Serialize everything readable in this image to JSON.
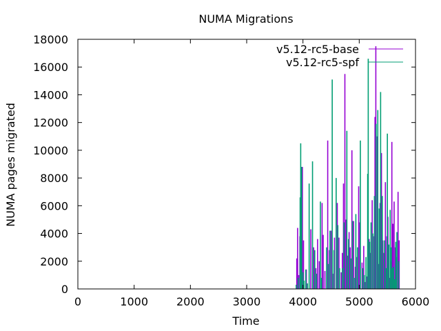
{
  "chart_data": {
    "type": "bar",
    "title": "NUMA Migrations",
    "xlabel": "Time",
    "ylabel": "NUMA pages migrated",
    "xlim": [
      0,
      6000
    ],
    "ylim": [
      0,
      18000
    ],
    "xticks": [
      0,
      1000,
      2000,
      3000,
      4000,
      5000,
      6000
    ],
    "yticks": [
      0,
      2000,
      4000,
      6000,
      8000,
      10000,
      12000,
      14000,
      16000,
      18000
    ],
    "grid": false,
    "legend_position": "top-right",
    "series": [
      {
        "name": "v5.12-rc5-base",
        "color": "#9400d3",
        "points": [
          [
            3890,
            2200
          ],
          [
            3905,
            4400
          ],
          [
            3925,
            1000
          ],
          [
            3945,
            3800
          ],
          [
            3965,
            2000
          ],
          [
            3990,
            8800
          ],
          [
            4010,
            3500
          ],
          [
            4060,
            1400
          ],
          [
            4140,
            4300
          ],
          [
            4190,
            3000
          ],
          [
            4230,
            1500
          ],
          [
            4260,
            3600
          ],
          [
            4290,
            2000
          ],
          [
            4340,
            6200
          ],
          [
            4360,
            3900
          ],
          [
            4390,
            1300
          ],
          [
            4440,
            10700
          ],
          [
            4470,
            2800
          ],
          [
            4500,
            4200
          ],
          [
            4530,
            1100
          ],
          [
            4560,
            3700
          ],
          [
            4610,
            6200
          ],
          [
            4640,
            3700
          ],
          [
            4680,
            1200
          ],
          [
            4700,
            2600
          ],
          [
            4720,
            7600
          ],
          [
            4745,
            15500
          ],
          [
            4765,
            5000
          ],
          [
            4790,
            2400
          ],
          [
            4820,
            4100
          ],
          [
            4840,
            3000
          ],
          [
            4870,
            10000
          ],
          [
            4900,
            4900
          ],
          [
            4930,
            1600
          ],
          [
            4960,
            2300
          ],
          [
            4990,
            7400
          ],
          [
            5010,
            4800
          ],
          [
            5050,
            1900
          ],
          [
            5080,
            3100
          ],
          [
            5110,
            500
          ],
          [
            5140,
            900
          ],
          [
            5175,
            3600
          ],
          [
            5200,
            2600
          ],
          [
            5230,
            6400
          ],
          [
            5260,
            3800
          ],
          [
            5280,
            12400
          ],
          [
            5295,
            17500
          ],
          [
            5320,
            11000
          ],
          [
            5340,
            1800
          ],
          [
            5370,
            6200
          ],
          [
            5395,
            9800
          ],
          [
            5420,
            3500
          ],
          [
            5440,
            2600
          ],
          [
            5465,
            7700
          ],
          [
            5490,
            3800
          ],
          [
            5510,
            5200
          ],
          [
            5540,
            800
          ],
          [
            5560,
            2000
          ],
          [
            5580,
            10600
          ],
          [
            5600,
            4700
          ],
          [
            5620,
            6300
          ],
          [
            5640,
            3000
          ],
          [
            5660,
            2300
          ],
          [
            5690,
            7000
          ],
          [
            5710,
            3500
          ]
        ]
      },
      {
        "name": "v5.12-rc5-spf",
        "color": "#009e73",
        "points": [
          [
            3880,
            300
          ],
          [
            3915,
            800
          ],
          [
            3950,
            6600
          ],
          [
            3960,
            10500
          ],
          [
            3975,
            8800
          ],
          [
            4000,
            1200
          ],
          [
            4020,
            600
          ],
          [
            4050,
            1400
          ],
          [
            4080,
            400
          ],
          [
            4110,
            7600
          ],
          [
            4170,
            9200
          ],
          [
            4210,
            2800
          ],
          [
            4240,
            1100
          ],
          [
            4310,
            6300
          ],
          [
            4330,
            800
          ],
          [
            4420,
            3000
          ],
          [
            4450,
            1800
          ],
          [
            4480,
            4200
          ],
          [
            4520,
            15100
          ],
          [
            4550,
            2800
          ],
          [
            4590,
            8000
          ],
          [
            4620,
            4600
          ],
          [
            4650,
            1500
          ],
          [
            4700,
            1500
          ],
          [
            4730,
            4800
          ],
          [
            4780,
            11400
          ],
          [
            4810,
            3600
          ],
          [
            4850,
            2200
          ],
          [
            4880,
            4900
          ],
          [
            4910,
            800
          ],
          [
            4940,
            5400
          ],
          [
            4970,
            3000
          ],
          [
            5020,
            10700
          ],
          [
            5060,
            1500
          ],
          [
            5090,
            1000
          ],
          [
            5120,
            2300
          ],
          [
            5150,
            8300
          ],
          [
            5160,
            16600
          ],
          [
            5185,
            3400
          ],
          [
            5210,
            4800
          ],
          [
            5240,
            4000
          ],
          [
            5270,
            6700
          ],
          [
            5300,
            11900
          ],
          [
            5330,
            12900
          ],
          [
            5355,
            5800
          ],
          [
            5380,
            14200
          ],
          [
            5410,
            6700
          ],
          [
            5450,
            3500
          ],
          [
            5480,
            1500
          ],
          [
            5500,
            11200
          ],
          [
            5525,
            3200
          ],
          [
            5550,
            5700
          ],
          [
            5570,
            3000
          ],
          [
            5590,
            1500
          ],
          [
            5610,
            1600
          ],
          [
            5630,
            700
          ],
          [
            5650,
            3400
          ],
          [
            5670,
            4100
          ],
          [
            5700,
            2000
          ]
        ]
      }
    ]
  }
}
